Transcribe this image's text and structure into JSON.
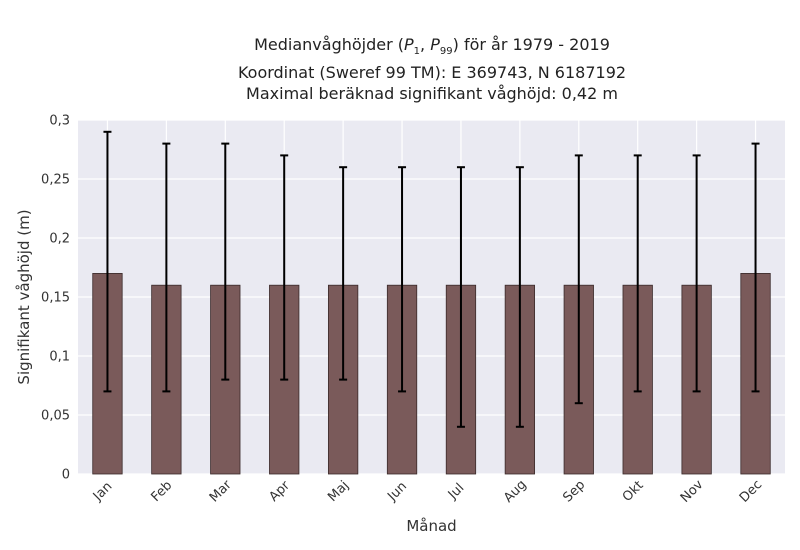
{
  "title_lines": {
    "line1_pre": "Medianvåghöjder (",
    "p1": "P",
    "p1_sub": "1",
    "sep": ", ",
    "p99": "P",
    "p99_sub": "99",
    "line1_post": ") för år 1979 - 2019",
    "line2": "Koordinat (Sweref 99 TM): E 369743, N 6187192",
    "line3": "Maximal beräknad signifikant våghöjd: 0,42 m"
  },
  "chart_data": {
    "type": "bar",
    "xlabel": "Månad",
    "ylabel": "Signifikant våghöjd (m)",
    "ylim": [
      0,
      0.3
    ],
    "yticks": [
      0,
      0.05,
      0.1,
      0.15,
      0.2,
      0.25,
      0.3
    ],
    "ytick_labels": [
      "0",
      "0,05",
      "0,1",
      "0,15",
      "0,2",
      "0,25",
      "0,3"
    ],
    "categories": [
      "Jan",
      "Feb",
      "Mar",
      "Apr",
      "Maj",
      "Jun",
      "Jul",
      "Aug",
      "Sep",
      "Okt",
      "Nov",
      "Dec"
    ],
    "values": [
      0.17,
      0.16,
      0.16,
      0.16,
      0.16,
      0.16,
      0.16,
      0.16,
      0.16,
      0.16,
      0.16,
      0.17
    ],
    "error_low": [
      0.07,
      0.07,
      0.08,
      0.08,
      0.08,
      0.07,
      0.04,
      0.04,
      0.06,
      0.07,
      0.07,
      0.07
    ],
    "error_high": [
      0.29,
      0.28,
      0.28,
      0.27,
      0.26,
      0.26,
      0.26,
      0.26,
      0.27,
      0.27,
      0.27,
      0.28
    ],
    "grid": true,
    "colors": {
      "bar": "#7a5a5a",
      "bar_edge": "#3a2a2a",
      "error": "#000000",
      "plot_bg": "#eaeaf2",
      "grid": "#ffffff"
    }
  }
}
